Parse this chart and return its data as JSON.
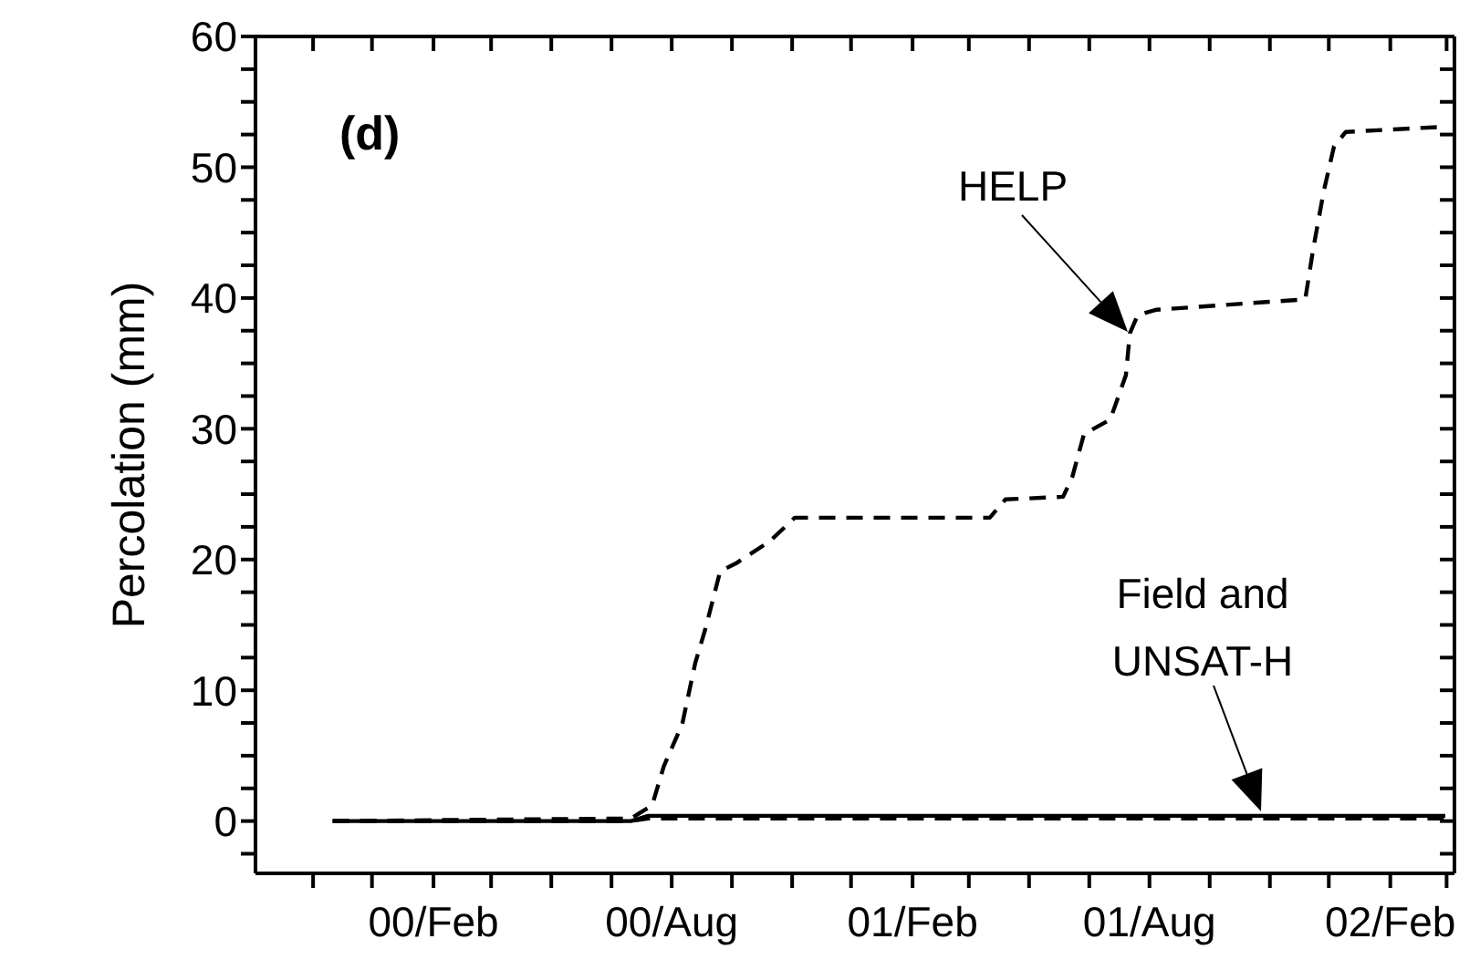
{
  "chart_data": {
    "type": "line",
    "ylabel": "Percolation (mm)",
    "annotations": [
      "(d)",
      "HELP",
      "Field and UNSAT-H"
    ],
    "xlim": [
      "1999-09-18",
      "2002-03-22"
    ],
    "xticks": [
      {
        "value": "1999-11-01",
        "label": null
      },
      {
        "value": "1999-12-16",
        "label": null
      },
      {
        "value": "2000-02-01",
        "label": "00/Feb"
      },
      {
        "value": "2000-03-16",
        "label": null
      },
      {
        "value": "2000-05-01",
        "label": null
      },
      {
        "value": "2000-06-16",
        "label": null
      },
      {
        "value": "2000-08-01",
        "label": "00/Aug"
      },
      {
        "value": "2000-09-16",
        "label": null
      },
      {
        "value": "2000-11-01",
        "label": null
      },
      {
        "value": "2000-12-16",
        "label": null
      },
      {
        "value": "2001-02-01",
        "label": "01/Feb"
      },
      {
        "value": "2001-03-16",
        "label": null
      },
      {
        "value": "2001-05-01",
        "label": null
      },
      {
        "value": "2001-06-16",
        "label": null
      },
      {
        "value": "2001-08-01",
        "label": "01/Aug"
      },
      {
        "value": "2001-09-16",
        "label": null
      },
      {
        "value": "2001-11-01",
        "label": null
      },
      {
        "value": "2001-12-16",
        "label": null
      },
      {
        "value": "2002-02-01",
        "label": "02/Feb"
      },
      {
        "value": "2002-03-16",
        "label": null
      }
    ],
    "ylim": [
      -4,
      60
    ],
    "yticks": [
      {
        "value": -2.5,
        "label": null
      },
      0,
      {
        "value": 2.5,
        "label": null
      },
      {
        "value": 5,
        "label": null
      },
      {
        "value": 7.5,
        "label": null
      },
      10,
      {
        "value": 12.5,
        "label": null
      },
      {
        "value": 15,
        "label": null
      },
      {
        "value": 17.5,
        "label": null
      },
      20,
      {
        "value": 22.5,
        "label": null
      },
      {
        "value": 25,
        "label": null
      },
      {
        "value": 27.5,
        "label": null
      },
      30,
      {
        "value": 32.5,
        "label": null
      },
      {
        "value": 35,
        "label": null
      },
      {
        "value": 37.5,
        "label": null
      },
      40,
      {
        "value": 42.5,
        "label": null
      },
      {
        "value": 45,
        "label": null
      },
      {
        "value": 47.5,
        "label": null
      },
      50,
      {
        "value": 52.5,
        "label": null
      },
      {
        "value": 55,
        "label": null
      },
      {
        "value": 57.5,
        "label": null
      },
      60
    ],
    "marker": "none",
    "series": [
      {
        "color": "#000000",
        "line_style": "dashed",
        "x": [
          "1999-11-16",
          "2000-07-01",
          "2000-07-17",
          "2000-07-26",
          "2000-08-09",
          "2000-08-19",
          "2000-08-27",
          "2000-09-07",
          "2000-09-19",
          "2000-10-15",
          "2000-11-03",
          "2001-04-01",
          "2001-04-13",
          "2001-05-27",
          "2001-06-03",
          "2001-06-12",
          "2001-07-02",
          "2001-07-14",
          "2001-07-17",
          "2001-07-23",
          "2001-08-06",
          "2001-11-28",
          "2001-12-04",
          "2001-12-12",
          "2001-12-20",
          "2001-12-29",
          "2002-03-15"
        ],
        "values": [
          0,
          0.2,
          1.2,
          4.2,
          7.4,
          12.1,
          14.8,
          19.1,
          19.7,
          21.4,
          23.2,
          23.2,
          24.6,
          24.8,
          26.3,
          29.6,
          30.7,
          34.1,
          37.3,
          38.7,
          39.1,
          39.9,
          43.7,
          48.1,
          51.6,
          52.7,
          53.1
        ]
      },
      {
        "color": "#000000",
        "line_style": "dashed",
        "x": [
          "1999-11-16",
          "2000-07-01",
          "2000-07-14",
          "2002-03-15"
        ],
        "values": [
          0,
          0,
          0.2,
          0.2
        ]
      },
      {
        "color": "#000000",
        "line_style": "solid",
        "x": [
          "1999-11-16",
          "2000-07-01",
          "2000-07-14",
          "2002-03-15"
        ],
        "values": [
          0,
          0,
          0.4,
          0.4
        ]
      }
    ]
  }
}
